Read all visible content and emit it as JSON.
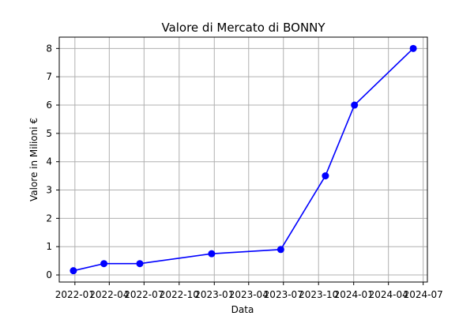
{
  "chart_data": {
    "type": "line",
    "title": "Valore di Mercato di BONNY",
    "xlabel": "Data",
    "ylabel": "Valore in Milioni €",
    "x_ticks": [
      "2022-01",
      "2022-04",
      "2022-07",
      "2022-10",
      "2023-01",
      "2023-04",
      "2023-07",
      "2023-10",
      "2024-01",
      "2024-04",
      "2024-07"
    ],
    "y_ticks": [
      "0",
      "1",
      "2",
      "3",
      "4",
      "5",
      "6",
      "7",
      "8"
    ],
    "xlim": [
      "2021-11-21",
      "2024-07-12"
    ],
    "ylim": [
      -0.25,
      8.4
    ],
    "grid": true,
    "series": [
      {
        "color": "#0000ff",
        "marker": "circle",
        "x": [
          "2021-12-28",
          "2022-03-18",
          "2022-06-20",
          "2022-12-25",
          "2023-06-24",
          "2023-10-19",
          "2024-01-03",
          "2024-06-05"
        ],
        "y": [
          0.15,
          0.4,
          0.4,
          0.75,
          0.9,
          3.5,
          6.0,
          8.0
        ]
      }
    ]
  }
}
